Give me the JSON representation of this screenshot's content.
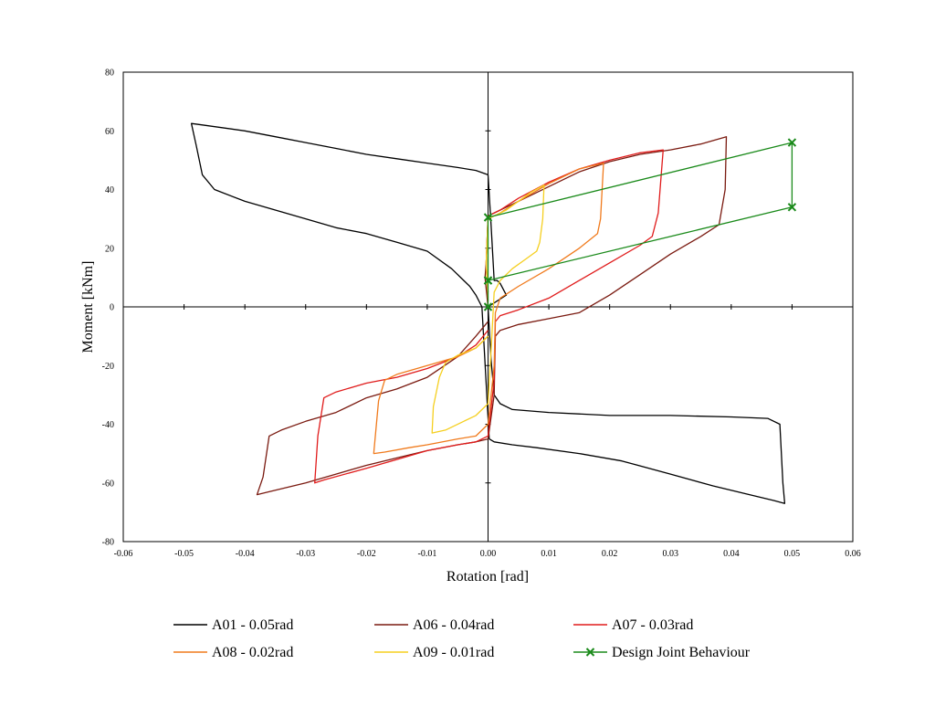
{
  "chart_data": {
    "type": "line",
    "title": "",
    "xlabel": "Rotation [rad]",
    "ylabel": "Moment [kNm]",
    "xlim": [
      -0.06,
      0.06
    ],
    "ylim": [
      -80,
      80
    ],
    "x_ticks": [
      -0.06,
      -0.05,
      -0.04,
      -0.03,
      -0.02,
      -0.01,
      0.0,
      0.01,
      0.02,
      0.03,
      0.04,
      0.05,
      0.06
    ],
    "x_tick_labels": [
      "-0.06",
      "-0.05",
      "-0.04",
      "-0.03",
      "-0.02",
      "-0.01",
      "0.00",
      "0.01",
      "0.02",
      "0.03",
      "0.04",
      "0.05",
      "0.06"
    ],
    "y_ticks": [
      -80,
      -60,
      -40,
      -20,
      0,
      20,
      40,
      60,
      80
    ],
    "y_tick_labels": [
      "-80",
      "-60",
      "-40",
      "-20",
      "0",
      "20",
      "40",
      "60",
      "80"
    ],
    "grid": false,
    "legend_position": "bottom",
    "series": [
      {
        "name": "A01 - 0.05rad",
        "color": "#000000",
        "marker": "none",
        "points": [
          [
            0.0,
            0.0
          ],
          [
            0.0005,
            -18
          ],
          [
            0.001,
            -30
          ],
          [
            0.002,
            -33
          ],
          [
            0.004,
            -35
          ],
          [
            0.01,
            -36
          ],
          [
            0.02,
            -37
          ],
          [
            0.03,
            -37
          ],
          [
            0.04,
            -37.5
          ],
          [
            0.046,
            -38
          ],
          [
            0.048,
            -40
          ],
          [
            0.0485,
            -60
          ],
          [
            0.0488,
            -67
          ],
          [
            0.047,
            -66
          ],
          [
            0.043,
            -64
          ],
          [
            0.037,
            -61
          ],
          [
            0.03,
            -57
          ],
          [
            0.022,
            -52.5
          ],
          [
            0.015,
            -50
          ],
          [
            0.008,
            -48
          ],
          [
            0.004,
            -47
          ],
          [
            0.001,
            -46
          ],
          [
            0.0002,
            -45
          ],
          [
            -0.001,
            0
          ],
          [
            -0.002,
            4
          ],
          [
            -0.003,
            7
          ],
          [
            -0.004,
            9
          ],
          [
            -0.006,
            13
          ],
          [
            -0.01,
            19
          ],
          [
            -0.015,
            22
          ],
          [
            -0.02,
            25
          ],
          [
            -0.025,
            27
          ],
          [
            -0.03,
            30
          ],
          [
            -0.035,
            33
          ],
          [
            -0.04,
            36
          ],
          [
            -0.045,
            40
          ],
          [
            -0.047,
            45
          ],
          [
            -0.048,
            55
          ],
          [
            -0.0488,
            62.5
          ],
          [
            -0.047,
            62
          ],
          [
            -0.04,
            60
          ],
          [
            -0.035,
            58
          ],
          [
            -0.03,
            56
          ],
          [
            -0.025,
            54
          ],
          [
            -0.02,
            52
          ],
          [
            -0.015,
            50.5
          ],
          [
            -0.01,
            49
          ],
          [
            -0.005,
            47.5
          ],
          [
            -0.002,
            46.5
          ],
          [
            0.0,
            45
          ],
          [
            0.0005,
            28
          ],
          [
            0.001,
            9
          ],
          [
            0.0015,
            9
          ],
          [
            0.002,
            8
          ],
          [
            0.003,
            4
          ],
          [
            0.0,
            0.0
          ]
        ]
      },
      {
        "name": "A06 - 0.04rad",
        "color": "#7a1a10",
        "marker": "none",
        "points": [
          [
            0.0,
            -5
          ],
          [
            -0.002,
            -10
          ],
          [
            -0.005,
            -17
          ],
          [
            -0.01,
            -24
          ],
          [
            -0.015,
            -28
          ],
          [
            -0.02,
            -31
          ],
          [
            -0.025,
            -36
          ],
          [
            -0.03,
            -39
          ],
          [
            -0.034,
            -42
          ],
          [
            -0.036,
            -44
          ],
          [
            -0.037,
            -58
          ],
          [
            -0.038,
            -64
          ],
          [
            -0.036,
            -63
          ],
          [
            -0.03,
            -60
          ],
          [
            -0.025,
            -57
          ],
          [
            -0.02,
            -54
          ],
          [
            -0.015,
            -51.5
          ],
          [
            -0.01,
            -49
          ],
          [
            -0.005,
            -47
          ],
          [
            -0.002,
            -46
          ],
          [
            0.0,
            -45
          ],
          [
            0.001,
            -30
          ],
          [
            0.0012,
            -10
          ],
          [
            0.002,
            -8
          ],
          [
            0.005,
            -6
          ],
          [
            0.01,
            -4
          ],
          [
            0.015,
            -2
          ],
          [
            0.02,
            4
          ],
          [
            0.025,
            11
          ],
          [
            0.03,
            18
          ],
          [
            0.035,
            24
          ],
          [
            0.038,
            28
          ],
          [
            0.039,
            40
          ],
          [
            0.0392,
            58
          ],
          [
            0.035,
            55.5
          ],
          [
            0.03,
            53.5
          ],
          [
            0.025,
            52
          ],
          [
            0.02,
            49.5
          ],
          [
            0.015,
            46
          ],
          [
            0.01,
            41
          ],
          [
            0.005,
            36
          ],
          [
            0.002,
            33
          ],
          [
            0.0,
            31
          ],
          [
            -0.0003,
            15
          ],
          [
            -0.0005,
            10
          ],
          [
            0.0,
            0
          ]
        ]
      },
      {
        "name": "A07 - 0.03rad",
        "color": "#e01b1b",
        "marker": "none",
        "points": [
          [
            0.0,
            -8
          ],
          [
            -0.002,
            -13
          ],
          [
            -0.005,
            -17
          ],
          [
            -0.01,
            -21
          ],
          [
            -0.015,
            -24
          ],
          [
            -0.02,
            -26
          ],
          [
            -0.025,
            -29
          ],
          [
            -0.027,
            -31
          ],
          [
            -0.028,
            -44
          ],
          [
            -0.0285,
            -60
          ],
          [
            -0.027,
            -59
          ],
          [
            -0.02,
            -55
          ],
          [
            -0.015,
            -52
          ],
          [
            -0.01,
            -49
          ],
          [
            -0.005,
            -47
          ],
          [
            -0.002,
            -46
          ],
          [
            0.0,
            -44
          ],
          [
            0.001,
            -25
          ],
          [
            0.0012,
            -5
          ],
          [
            0.002,
            -3
          ],
          [
            0.005,
            -1
          ],
          [
            0.01,
            3
          ],
          [
            0.015,
            9
          ],
          [
            0.02,
            15
          ],
          [
            0.025,
            21
          ],
          [
            0.027,
            24
          ],
          [
            0.028,
            32
          ],
          [
            0.0288,
            53.5
          ],
          [
            0.025,
            52.5
          ],
          [
            0.02,
            50
          ],
          [
            0.015,
            47
          ],
          [
            0.01,
            42.5
          ],
          [
            0.005,
            37
          ],
          [
            0.002,
            33
          ],
          [
            0.0,
            31
          ],
          [
            -0.0003,
            15
          ],
          [
            0.0,
            2
          ]
        ]
      },
      {
        "name": "A08 - 0.02rad",
        "color": "#f07a1c",
        "marker": "none",
        "points": [
          [
            0.0,
            -10
          ],
          [
            -0.002,
            -14
          ],
          [
            -0.005,
            -17
          ],
          [
            -0.01,
            -20
          ],
          [
            -0.015,
            -23
          ],
          [
            -0.017,
            -25
          ],
          [
            -0.018,
            -32
          ],
          [
            -0.0188,
            -50
          ],
          [
            -0.017,
            -49.5
          ],
          [
            -0.013,
            -48
          ],
          [
            -0.01,
            -47
          ],
          [
            -0.005,
            -45
          ],
          [
            -0.002,
            -44
          ],
          [
            0.0,
            -40
          ],
          [
            0.001,
            -20
          ],
          [
            0.0012,
            -2
          ],
          [
            0.002,
            3
          ],
          [
            0.005,
            7
          ],
          [
            0.01,
            13
          ],
          [
            0.015,
            20
          ],
          [
            0.018,
            25
          ],
          [
            0.0185,
            30
          ],
          [
            0.019,
            49
          ],
          [
            0.015,
            47
          ],
          [
            0.01,
            42
          ],
          [
            0.005,
            36
          ],
          [
            0.002,
            32
          ],
          [
            0.0,
            30
          ],
          [
            -0.0003,
            15
          ],
          [
            0.0,
            5
          ]
        ]
      },
      {
        "name": "A09 - 0.01rad",
        "color": "#f5cf1f",
        "marker": "none",
        "points": [
          [
            0.0,
            -10
          ],
          [
            -0.002,
            -14
          ],
          [
            -0.005,
            -16.5
          ],
          [
            -0.007,
            -19
          ],
          [
            -0.008,
            -24
          ],
          [
            -0.009,
            -34
          ],
          [
            -0.0092,
            -43
          ],
          [
            -0.007,
            -42
          ],
          [
            -0.004,
            -39
          ],
          [
            -0.002,
            -37
          ],
          [
            0.0,
            -33
          ],
          [
            0.0005,
            -15
          ],
          [
            0.001,
            5
          ],
          [
            0.002,
            9
          ],
          [
            0.004,
            13
          ],
          [
            0.006,
            16
          ],
          [
            0.008,
            19
          ],
          [
            0.0085,
            22
          ],
          [
            0.009,
            30
          ],
          [
            0.0092,
            41.5
          ],
          [
            0.007,
            39
          ],
          [
            0.005,
            36
          ],
          [
            0.003,
            33
          ],
          [
            0.001,
            31
          ],
          [
            0.0,
            30
          ],
          [
            -0.0003,
            15
          ],
          [
            0.0,
            3
          ]
        ]
      },
      {
        "name": "Design Joint Behaviour",
        "color": "#1a8a1a",
        "marker": "x",
        "points": [
          [
            0.0,
            0.0
          ],
          [
            0.0,
            9
          ],
          [
            0.05,
            34
          ],
          [
            0.05,
            56
          ],
          [
            0.0,
            30.5
          ],
          [
            0.0,
            9
          ]
        ]
      }
    ]
  }
}
